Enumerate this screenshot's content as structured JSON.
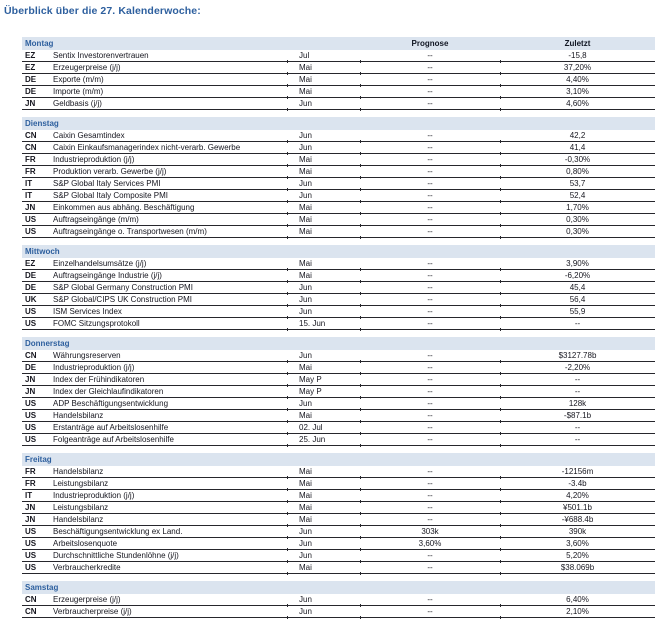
{
  "title": "Überblick über die 27. Kalenderwoche:",
  "columns": {
    "prognose": "Prognose",
    "zuletzt": "Zuletzt"
  },
  "colors": {
    "title_blue": "#2d5f9e",
    "band_background": "#dbe4ef",
    "band_day_text": "#2d5f9e",
    "row_line": "#26262c",
    "text": "#16161f"
  },
  "sections": [
    {
      "day": "Montag",
      "rows": [
        {
          "country": "EZ",
          "name": "Sentix Investorenvertrauen",
          "date": "Jul",
          "prog": "--",
          "last": "-15,8"
        },
        {
          "country": "EZ",
          "name": "Erzeugerpreise (j/j)",
          "date": "Mai",
          "prog": "--",
          "last": "37,20%"
        },
        {
          "country": "DE",
          "name": "Exporte (m/m)",
          "date": "Mai",
          "prog": "--",
          "last": "4,40%"
        },
        {
          "country": "DE",
          "name": "Importe (m/m)",
          "date": "Mai",
          "prog": "--",
          "last": "3,10%"
        },
        {
          "country": "JN",
          "name": "Geldbasis (j/j)",
          "date": "Jun",
          "prog": "--",
          "last": "4,60%"
        }
      ]
    },
    {
      "day": "Dienstag",
      "rows": [
        {
          "country": "CN",
          "name": "Caixin Gesamtindex",
          "date": "Jun",
          "prog": "--",
          "last": "42,2"
        },
        {
          "country": "CN",
          "name": "Caixin Einkaufsmanagerindex nicht-verarb. Gewerbe",
          "date": "Jun",
          "prog": "--",
          "last": "41,4"
        },
        {
          "country": "FR",
          "name": "Industrieproduktion (j/j)",
          "date": "Mai",
          "prog": "--",
          "last": "-0,30%"
        },
        {
          "country": "FR",
          "name": "Produktion verarb. Gewerbe (j/j)",
          "date": "Mai",
          "prog": "--",
          "last": "0,80%"
        },
        {
          "country": "IT",
          "name": "S&P Global Italy Services PMI",
          "date": "Jun",
          "prog": "--",
          "last": "53,7"
        },
        {
          "country": "IT",
          "name": "S&P Global Italy Composite PMI",
          "date": "Jun",
          "prog": "--",
          "last": "52,4"
        },
        {
          "country": "JN",
          "name": "Einkommen aus abhäng. Beschäftigung",
          "date": "Mai",
          "prog": "--",
          "last": "1,70%"
        },
        {
          "country": "US",
          "name": "Auftragseingänge (m/m)",
          "date": "Mai",
          "prog": "--",
          "last": "0,30%"
        },
        {
          "country": "US",
          "name": "Auftragseingänge o. Transportwesen (m/m)",
          "date": "Mai",
          "prog": "--",
          "last": "0,30%"
        }
      ]
    },
    {
      "day": "Mittwoch",
      "rows": [
        {
          "country": "EZ",
          "name": "Einzelhandelsumsätze (j/j)",
          "date": "Mai",
          "prog": "--",
          "last": "3,90%"
        },
        {
          "country": "DE",
          "name": "Auftragseingänge Industrie (j/j)",
          "date": "Mai",
          "prog": "--",
          "last": "-6,20%"
        },
        {
          "country": "DE",
          "name": "S&P Global Germany Construction PMI",
          "date": "Jun",
          "prog": "--",
          "last": "45,4"
        },
        {
          "country": "UK",
          "name": "S&P Global/CIPS UK Construction PMI",
          "date": "Jun",
          "prog": "--",
          "last": "56,4"
        },
        {
          "country": "US",
          "name": "ISM Services Index",
          "date": "Jun",
          "prog": "--",
          "last": "55,9"
        },
        {
          "country": "US",
          "name": "FOMC Sitzungsprotokoll",
          "date": "15. Jun",
          "prog": "--",
          "last": "--"
        }
      ]
    },
    {
      "day": "Donnerstag",
      "rows": [
        {
          "country": "CN",
          "name": "Währungsreserven",
          "date": "Jun",
          "prog": "--",
          "last": "$3127.78b"
        },
        {
          "country": "DE",
          "name": "Industrieproduktion (j/j)",
          "date": "Mai",
          "prog": "--",
          "last": "-2,20%"
        },
        {
          "country": "JN",
          "name": "Index der Frühindikatoren",
          "date": "May P",
          "prog": "--",
          "last": "--"
        },
        {
          "country": "JN",
          "name": "Index der Gleichlaufindikatoren",
          "date": "May P",
          "prog": "--",
          "last": "--"
        },
        {
          "country": "US",
          "name": "ADP Beschäftigungsentwicklung",
          "date": "Jun",
          "prog": "--",
          "last": "128k"
        },
        {
          "country": "US",
          "name": "Handelsbilanz",
          "date": "Mai",
          "prog": "--",
          "last": "-$87.1b"
        },
        {
          "country": "US",
          "name": "Erstanträge auf Arbeitslosenhilfe",
          "date": "02. Jul",
          "prog": "--",
          "last": "--"
        },
        {
          "country": "US",
          "name": "Folgeanträge auf Arbeitslosenhilfe",
          "date": "25. Jun",
          "prog": "--",
          "last": "--"
        }
      ]
    },
    {
      "day": "Freitag",
      "rows": [
        {
          "country": "FR",
          "name": "Handelsbilanz",
          "date": "Mai",
          "prog": "--",
          "last": "-12156m"
        },
        {
          "country": "FR",
          "name": "Leistungsbilanz",
          "date": "Mai",
          "prog": "--",
          "last": "-3.4b"
        },
        {
          "country": "IT",
          "name": "Industrieproduktion (j/j)",
          "date": "Mai",
          "prog": "--",
          "last": "4,20%"
        },
        {
          "country": "JN",
          "name": "Leistungsbilanz",
          "date": "Mai",
          "prog": "--",
          "last": "¥501.1b"
        },
        {
          "country": "JN",
          "name": "Handelsbilanz",
          "date": "Mai",
          "prog": "--",
          "last": "-¥688.4b"
        },
        {
          "country": "US",
          "name": "Beschäftigungsentwicklung ex Land.",
          "date": "Jun",
          "prog": "303k",
          "last": "390k"
        },
        {
          "country": "US",
          "name": "Arbeitslosenquote",
          "date": "Jun",
          "prog": "3,60%",
          "last": "3,60%"
        },
        {
          "country": "US",
          "name": "Durchschnittliche Stundenlöhne (j/j)",
          "date": "Jun",
          "prog": "--",
          "last": "5,20%"
        },
        {
          "country": "US",
          "name": "Verbraucherkredite",
          "date": "Mai",
          "prog": "--",
          "last": "$38.069b"
        }
      ]
    },
    {
      "day": "Samstag",
      "rows": [
        {
          "country": "CN",
          "name": "Erzeugerpreise (j/j)",
          "date": "Jun",
          "prog": "--",
          "last": "6,40%"
        },
        {
          "country": "CN",
          "name": "Verbraucherpreise (j/j)",
          "date": "Jun",
          "prog": "--",
          "last": "2,10%"
        }
      ]
    }
  ]
}
